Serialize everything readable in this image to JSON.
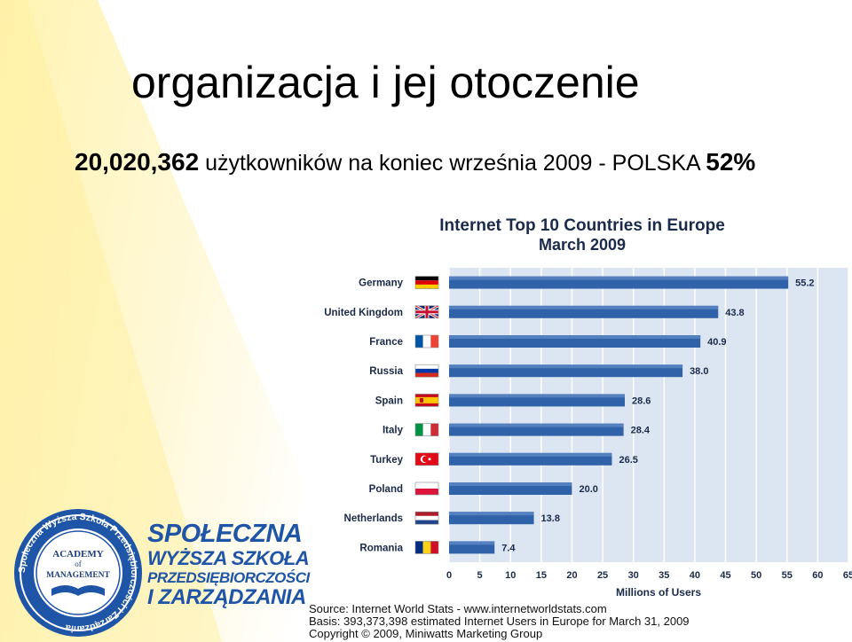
{
  "slide": {
    "title": "organizacja i jej otoczenie",
    "subtitle_number": "20,020,362",
    "subtitle_text": " użytkowników na koniec września 2009 - POLSKA ",
    "subtitle_percent": "52%"
  },
  "logo": {
    "name_line1": "SPOŁECZNA",
    "name_line2": "WYŻSZA SZKOŁA",
    "name_line3": "PRZEDSIĘBIORCZOŚCI",
    "name_line4": "I ZARZĄDZANIA",
    "seal_ring_text": "Społeczna Wyższa Szkoła Przedsiębiorczości i Zarządzania",
    "seal_center_line1": "ACADEMY",
    "seal_center_line2": "of",
    "seal_center_line3": "MANAGEMENT"
  },
  "colors": {
    "bar": "#2f62a8",
    "bar_dark": "#1e4a8a",
    "plot_bg": "#dce6f2",
    "grid": "#ffffff",
    "brand_blue": "#1f55a6",
    "bg_yellow": "#fff6c2"
  },
  "chart_data": {
    "type": "bar",
    "orientation": "horizontal",
    "title": "Internet Top 10 Countries in Europe",
    "subtitle": "March 2009",
    "xlabel": "Millions of Users",
    "xlim": [
      0,
      65
    ],
    "xticks": [
      0,
      5,
      10,
      15,
      20,
      25,
      30,
      35,
      40,
      45,
      50,
      55,
      60,
      65
    ],
    "grid": true,
    "categories": [
      "Germany",
      "United Kingdom",
      "France",
      "Russia",
      "Spain",
      "Italy",
      "Turkey",
      "Poland",
      "Netherlands",
      "Romania"
    ],
    "flags": [
      "germany-flag",
      "uk-flag",
      "france-flag",
      "russia-flag",
      "spain-flag",
      "italy-flag",
      "turkey-flag",
      "poland-flag",
      "netherlands-flag",
      "romania-flag"
    ],
    "values": [
      55.2,
      43.8,
      40.9,
      38.0,
      28.6,
      28.4,
      26.5,
      20.0,
      13.8,
      7.4
    ],
    "value_labels": [
      "55.2",
      "43.8",
      "40.9",
      "38.0",
      "28.6",
      "28.4",
      "26.5",
      "20.0",
      "13.8",
      "7.4"
    ],
    "source_lines": [
      "Source: Internet World Stats  -  www.internetworldstats.com",
      "Basis: 393,373,398 estimated Internet Users in Europe for March 31, 2009",
      "Copyright © 2009, Miniwatts Marketing Group"
    ]
  }
}
